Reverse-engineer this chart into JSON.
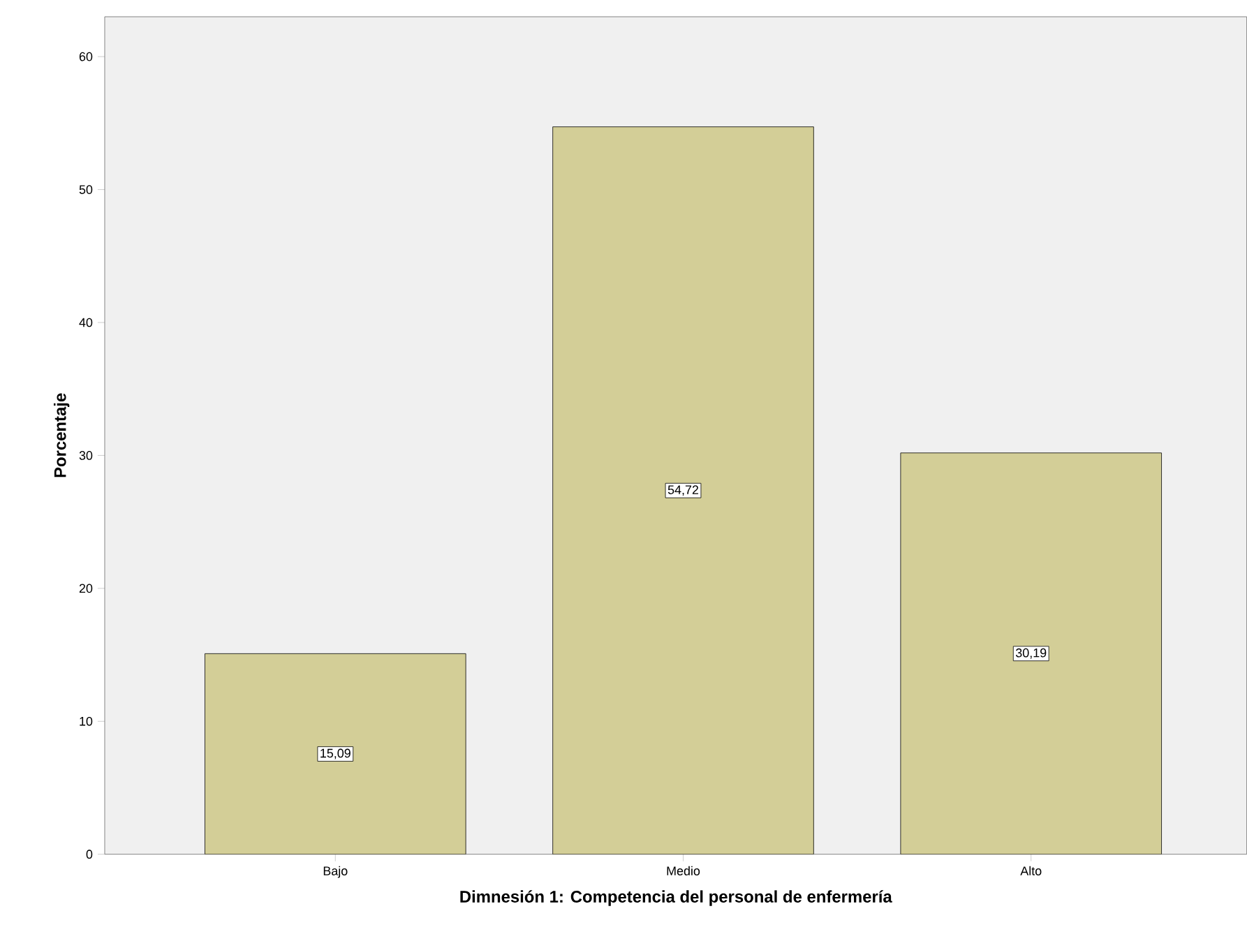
{
  "chart_data": {
    "type": "bar",
    "xlabel": "Dimnesión 1: Competencia del personal de enfermería",
    "ylabel": "Porcentaje",
    "categories": [
      "Bajo",
      "Medio",
      "Alto"
    ],
    "values": [
      15.09,
      54.72,
      30.19
    ],
    "value_labels": [
      "15,09",
      "54,72",
      "30,19"
    ],
    "color": "#d3ce97",
    "ylim": [
      0,
      63
    ],
    "yticks": [
      0,
      10,
      20,
      30,
      40,
      50,
      60
    ]
  }
}
